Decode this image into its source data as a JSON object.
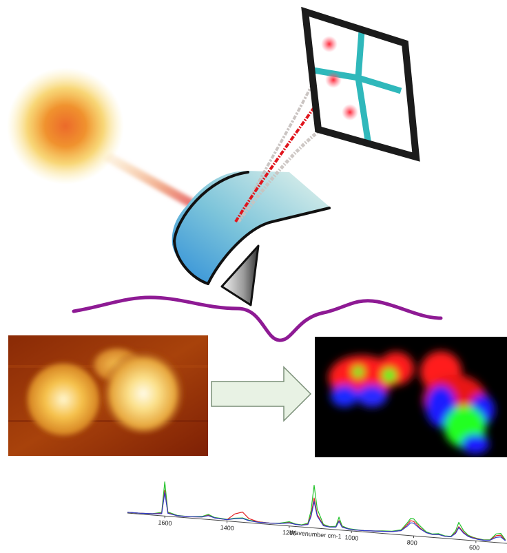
{
  "diagram": {
    "colors": {
      "light_source": "#ef7f2e",
      "light_halo": "#f7d44a",
      "laser_red": "#e0141c",
      "scatter_gray": "#b9b4b0",
      "cantilever": "#55a9d6",
      "cantilever_light": "#cde9e1",
      "tip": "#555555",
      "wave": "#8e1a94",
      "detector_frame": "#1b1b1b",
      "detector_cross": "#2fb8bb",
      "arrow_fill": "#e8f2e4",
      "arrow_stroke": "#7a8f78"
    },
    "icons": {
      "light_source": "sun-glow-icon",
      "detector": "grid-detector-icon",
      "cantilever": "afm-cantilever-icon",
      "arrow": "right-arrow-icon"
    }
  },
  "spectrum": {
    "xlabel": "Wavenumber cm-1",
    "tick_labels": [
      "1600",
      "1400",
      "1200",
      "1000",
      "800",
      "600"
    ]
  },
  "chart_data": {
    "type": "line",
    "xlabel": "Wavenumber cm-1",
    "x_reversed": true,
    "xlim": [
      1720,
      500
    ],
    "x": [
      1720,
      1680,
      1640,
      1610,
      1600,
      1590,
      1560,
      1520,
      1480,
      1460,
      1440,
      1400,
      1375,
      1350,
      1330,
      1300,
      1260,
      1230,
      1200,
      1180,
      1160,
      1140,
      1130,
      1120,
      1110,
      1090,
      1070,
      1050,
      1040,
      1030,
      1010,
      990,
      960,
      930,
      900,
      870,
      840,
      820,
      810,
      800,
      790,
      780,
      760,
      740,
      720,
      700,
      680,
      665,
      655,
      640,
      625,
      610,
      595,
      575,
      555,
      535,
      520,
      505
    ],
    "series": [
      {
        "color": "#22c22a",
        "values": [
          2,
          2,
          3,
          8,
          80,
          10,
          4,
          3,
          6,
          12,
          6,
          4,
          8,
          10,
          6,
          4,
          3,
          5,
          10,
          6,
          5,
          10,
          40,
          100,
          45,
          10,
          6,
          8,
          30,
          10,
          5,
          4,
          3,
          4,
          6,
          7,
          12,
          30,
          40,
          40,
          32,
          25,
          12,
          8,
          10,
          6,
          6,
          20,
          40,
          22,
          12,
          8,
          6,
          4,
          5,
          20,
          22,
          8
        ]
      },
      {
        "color": "#e02020",
        "values": [
          2,
          2,
          3,
          6,
          60,
          8,
          3,
          3,
          5,
          10,
          5,
          3,
          18,
          24,
          10,
          4,
          3,
          4,
          8,
          5,
          4,
          8,
          30,
          70,
          32,
          8,
          5,
          6,
          22,
          8,
          4,
          3,
          3,
          4,
          5,
          6,
          10,
          26,
          35,
          34,
          28,
          20,
          10,
          7,
          8,
          5,
          5,
          16,
          30,
          18,
          10,
          7,
          5,
          3,
          4,
          16,
          18,
          6
        ]
      },
      {
        "color": "#2a3cc8",
        "values": [
          2,
          2,
          3,
          5,
          55,
          7,
          3,
          3,
          5,
          9,
          5,
          3,
          7,
          9,
          5,
          3,
          3,
          4,
          7,
          5,
          4,
          7,
          26,
          62,
          28,
          7,
          5,
          6,
          20,
          7,
          4,
          3,
          3,
          4,
          5,
          6,
          10,
          22,
          30,
          30,
          24,
          18,
          10,
          7,
          8,
          5,
          5,
          14,
          28,
          16,
          9,
          6,
          4,
          3,
          4,
          12,
          14,
          6
        ]
      }
    ]
  }
}
